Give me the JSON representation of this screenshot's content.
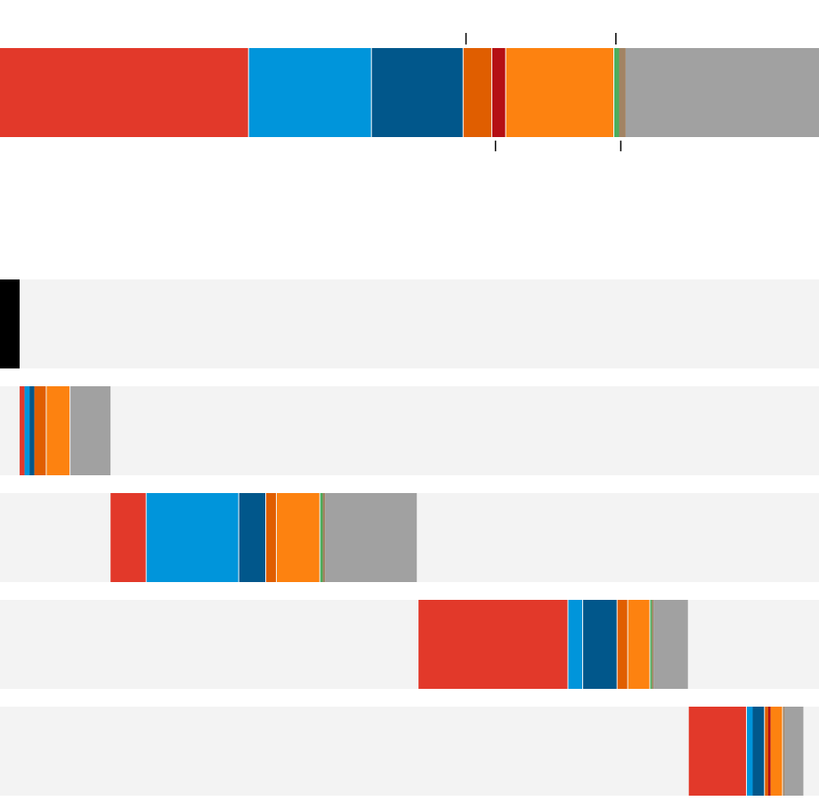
{
  "colors": {
    "track": "#f3f3f3",
    "tick": "#000000",
    "separator": "#ffffff",
    "categories": [
      "#e2392a",
      "#0095db",
      "#01578b",
      "#e05e00",
      "#b50f14",
      "#fd8210",
      "#4cad5c",
      "#a28363",
      "#a1a1a1"
    ]
  },
  "chart_data": {
    "type": "bar",
    "stacked": true,
    "orientation": "horizontal",
    "total_bar": {
      "values": [
        30.4,
        15.0,
        11.2,
        3.5,
        1.7,
        13.2,
        0.6,
        0.8,
        23.6
      ],
      "total": 100,
      "ticks_top_at": [
        56.9,
        75.2
      ],
      "ticks_bottom_at": [
        60.5,
        75.8
      ]
    },
    "range": [
      0,
      100
    ],
    "rows": [
      {
        "start": 0,
        "stacked": false,
        "fill": "#000000",
        "values": [
          2.4
        ]
      },
      {
        "start": 2.4,
        "stacked": true,
        "values": [
          0.6,
          0.6,
          0.6,
          1.5,
          0.0,
          2.9,
          0.0,
          0.0,
          5.0
        ]
      },
      {
        "start": 13.5,
        "stacked": true,
        "values": [
          4.4,
          11.3,
          3.3,
          1.3,
          0.0,
          5.3,
          0.3,
          0.3,
          11.3
        ]
      },
      {
        "start": 51.1,
        "stacked": true,
        "values": [
          18.3,
          1.8,
          4.2,
          1.3,
          0.0,
          2.7,
          0.2,
          0.2,
          4.3
        ]
      },
      {
        "start": 84.1,
        "stacked": true,
        "values": [
          7.1,
          0.7,
          1.5,
          0.4,
          0.3,
          1.5,
          0.0,
          0.2,
          2.4
        ]
      }
    ]
  }
}
